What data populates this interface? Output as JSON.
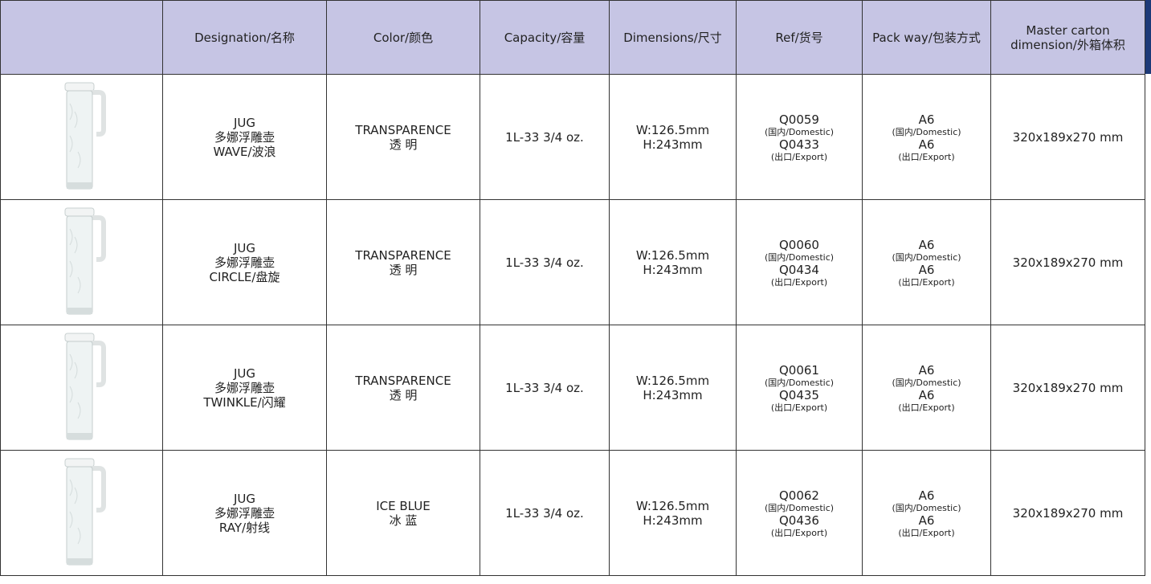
{
  "table": {
    "headers": [
      [
        "Designation/名称"
      ],
      [
        "Color/颜色"
      ],
      [
        "Capacity/容量"
      ],
      [
        "Dimensions/尺寸"
      ],
      [
        "Ref/货号"
      ],
      [
        "Pack way/包装方式"
      ],
      [
        "Master carton",
        "dimension/外箱体积"
      ]
    ],
    "rows": [
      [
        [
          "JUG",
          "多娜浮雕壶",
          "WAVE/波浪"
        ],
        [
          "TRANSPARENCE",
          "透 明"
        ],
        [
          "1L-33 3/4 oz."
        ],
        [
          "W:126.5mm",
          "H:243mm"
        ],
        [
          "Q0059",
          "(国内/Domestic)",
          "Q0433",
          "(出口/Export)"
        ],
        [
          "A6",
          "(国内/Domestic)",
          "A6",
          "(出口/Export)"
        ],
        [
          "320x189x270 mm"
        ]
      ],
      [
        [
          "JUG",
          "多娜浮雕壶",
          "CIRCLE/盘旋"
        ],
        [
          "TRANSPARENCE",
          "透 明"
        ],
        [
          "1L-33 3/4 oz."
        ],
        [
          "W:126.5mm",
          "H:243mm"
        ],
        [
          "Q0060",
          "(国内/Domestic)",
          "Q0434",
          "(出口/Export)"
        ],
        [
          "A6",
          "(国内/Domestic)",
          "A6",
          "(出口/Export)"
        ],
        [
          "320x189x270 mm"
        ]
      ],
      [
        [
          "JUG",
          "多娜浮雕壶",
          "TWINKLE/闪耀"
        ],
        [
          "TRANSPARENCE",
          "透 明"
        ],
        [
          "1L-33 3/4 oz."
        ],
        [
          "W:126.5mm",
          "H:243mm"
        ],
        [
          "Q0061",
          "(国内/Domestic)",
          "Q0435",
          "(出口/Export)"
        ],
        [
          "A6",
          "(国内/Domestic)",
          "A6",
          "(出口/Export)"
        ],
        [
          "320x189x270 mm"
        ]
      ],
      [
        [
          "JUG",
          "多娜浮雕壶",
          "RAY/射线"
        ],
        [
          "ICE BLUE",
          "冰 蓝"
        ],
        [
          "1L-33 3/4 oz."
        ],
        [
          "W:126.5mm",
          "H:243mm"
        ],
        [
          "Q0062",
          "(国内/Domestic)",
          "Q0436",
          "(出口/Export)"
        ],
        [
          "A6",
          "(国内/Domestic)",
          "A6",
          "(出口/Export)"
        ],
        [
          "320x189x270 mm"
        ]
      ]
    ]
  }
}
